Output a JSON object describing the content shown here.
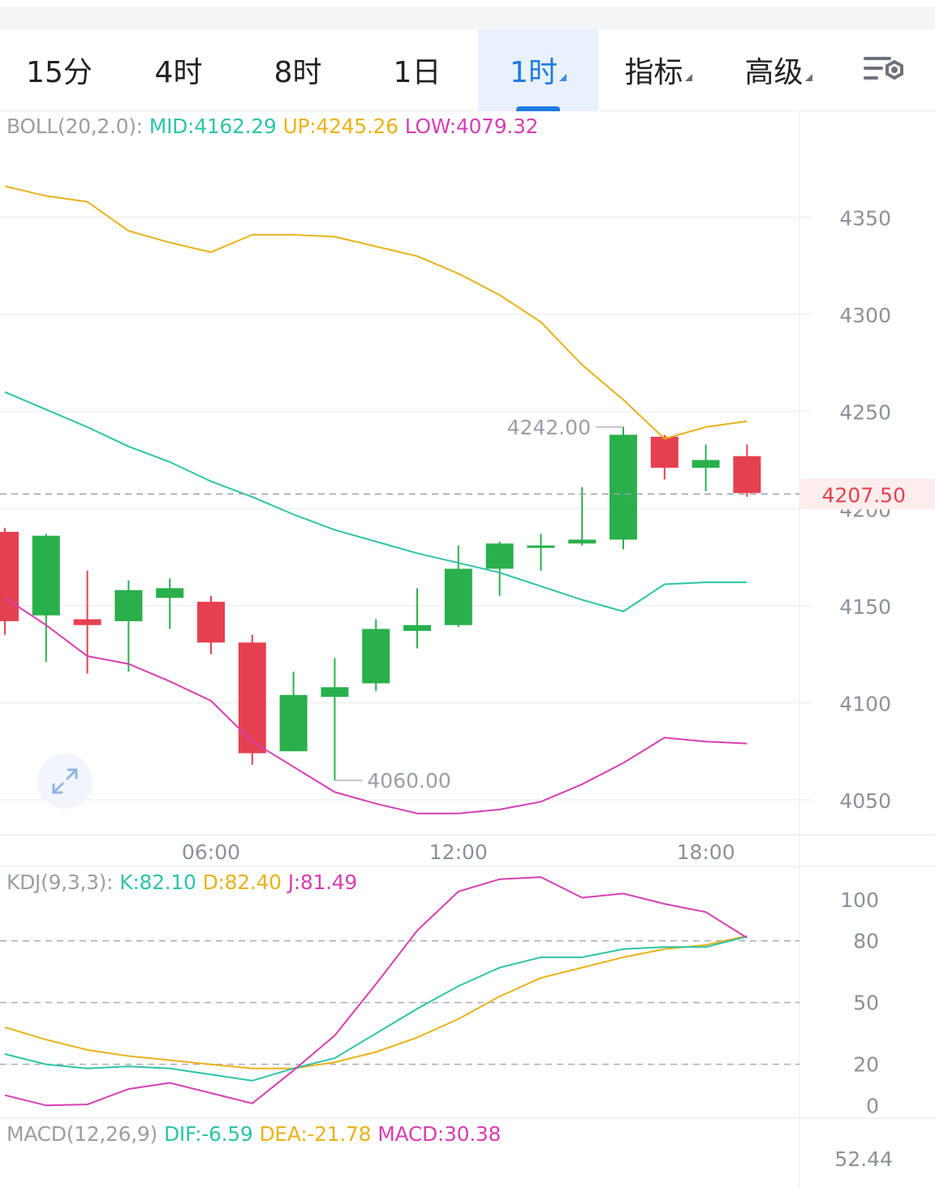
{
  "tabs": [
    {
      "label": "15分",
      "active": false,
      "dropdown": false
    },
    {
      "label": "4时",
      "active": false,
      "dropdown": false
    },
    {
      "label": "8时",
      "active": false,
      "dropdown": false
    },
    {
      "label": "1日",
      "active": false,
      "dropdown": false
    },
    {
      "label": "1时",
      "active": true,
      "dropdown": true
    },
    {
      "label": "指标",
      "active": false,
      "dropdown": true
    },
    {
      "label": "高级",
      "active": false,
      "dropdown": true
    }
  ],
  "settings_icon": "chart-settings-gear-icon",
  "boll_legend": {
    "prefix": "BOLL(20,2.0):",
    "mid": "MID:4162.29",
    "up": "UP:4245.26",
    "low": "LOW:4079.32"
  },
  "kdj_legend": {
    "prefix": "KDJ(9,3,3):",
    "k": "K:82.10",
    "d": "D:82.40",
    "j": "J:81.49"
  },
  "macd_legend": {
    "prefix": "MACD(12,26,9)",
    "dif": "DIF:-6.59",
    "dea": "DEA:-21.78",
    "macd": "MACD:30.38"
  },
  "colors": {
    "up": "#29b04b",
    "down": "#e5404f",
    "mid": "#2ec4a6",
    "upper": "#eab21a",
    "lower": "#d63fb3",
    "accent": "#1e7be0"
  },
  "chart_data": [
    {
      "type": "candlestick",
      "y_ticks": [
        "4350",
        "4300",
        "4250",
        "4200",
        "4150",
        "4100",
        "4050"
      ],
      "x_ticks": [
        "06:00",
        "12:00",
        "18:00"
      ],
      "ylim": [
        4032,
        4395
      ],
      "last_price": "4207.50",
      "high_label": "4242.00",
      "low_label": "4060.00",
      "candles": [
        {
          "o": 4188,
          "h": 4190,
          "l": 4135,
          "c": 4142
        },
        {
          "o": 4145,
          "h": 4187,
          "l": 4121,
          "c": 4186
        },
        {
          "o": 4143,
          "h": 4168,
          "l": 4115,
          "c": 4140
        },
        {
          "o": 4142,
          "h": 4163,
          "l": 4116,
          "c": 4158
        },
        {
          "o": 4154,
          "h": 4164,
          "l": 4138,
          "c": 4159
        },
        {
          "o": 4152,
          "h": 4155,
          "l": 4125,
          "c": 4131
        },
        {
          "o": 4131,
          "h": 4135,
          "l": 4068,
          "c": 4074
        },
        {
          "o": 4075,
          "h": 4116,
          "l": 4075,
          "c": 4104
        },
        {
          "o": 4103,
          "h": 4123,
          "l": 4060,
          "c": 4108
        },
        {
          "o": 4110,
          "h": 4143,
          "l": 4106,
          "c": 4138
        },
        {
          "o": 4137,
          "h": 4159,
          "l": 4128,
          "c": 4140
        },
        {
          "o": 4140,
          "h": 4181,
          "l": 4139,
          "c": 4169
        },
        {
          "o": 4169,
          "h": 4183,
          "l": 4155,
          "c": 4182
        },
        {
          "o": 4181,
          "h": 4187,
          "l": 4168,
          "c": 4181
        },
        {
          "o": 4182,
          "h": 4211,
          "l": 4181,
          "c": 4184
        },
        {
          "o": 4184,
          "h": 4242,
          "l": 4179,
          "c": 4238
        },
        {
          "o": 4237,
          "h": 4238,
          "l": 4215,
          "c": 4221
        },
        {
          "o": 4221,
          "h": 4233,
          "l": 4209,
          "c": 4225
        },
        {
          "o": 4227,
          "h": 4233,
          "l": 4206,
          "c": 4208
        }
      ],
      "boll_up": [
        4366,
        4361,
        4358,
        4343,
        4337,
        4332,
        4341,
        4341,
        4340,
        4335,
        4330,
        4321,
        4310,
        4296,
        4274,
        4256,
        4236,
        4242,
        4245
      ],
      "boll_mid": [
        4260,
        4251,
        4242,
        4232,
        4224,
        4214,
        4206,
        4197,
        4189,
        4183,
        4177,
        4172,
        4167,
        4160,
        4153,
        4147,
        4161,
        4162,
        4162
      ],
      "boll_low": [
        4154,
        4140,
        4124,
        4120,
        4111,
        4101,
        4080,
        4067,
        4054,
        4048,
        4043,
        4043,
        4045,
        4049,
        4058,
        4069,
        4082,
        4080,
        4079
      ]
    },
    {
      "type": "line",
      "name": "KDJ",
      "y_ticks": [
        "100",
        "80",
        "50",
        "20",
        "0"
      ],
      "ylim": [
        -5,
        115
      ],
      "k": [
        25,
        20,
        18,
        19,
        18,
        15,
        12,
        18,
        23,
        35,
        47,
        58,
        67,
        72,
        72,
        76,
        77,
        77,
        82.1
      ],
      "d": [
        38,
        32,
        27,
        24,
        22,
        20,
        18,
        18,
        21,
        26,
        33,
        42,
        53,
        62,
        67,
        72,
        76,
        78,
        82.4
      ],
      "j": [
        5,
        0,
        0.5,
        8,
        11,
        6,
        1,
        17,
        34,
        59,
        85,
        104,
        110,
        111,
        101,
        103,
        98,
        94,
        81.49
      ]
    },
    {
      "type": "bar",
      "name": "MACD",
      "y_ticks": [
        "52.44"
      ]
    }
  ]
}
